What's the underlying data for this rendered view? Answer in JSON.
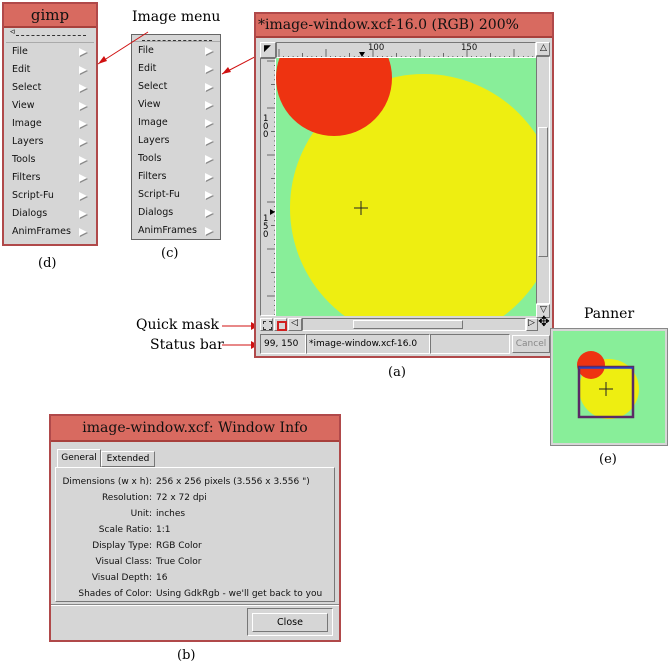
{
  "gimp_toolbox_menu": {
    "title": "gimp",
    "items": [
      "File",
      "Edit",
      "Select",
      "View",
      "Image",
      "Layers",
      "Tools",
      "Filters",
      "Script-Fu",
      "Dialogs",
      "AnimFrames"
    ],
    "caption": "(d)"
  },
  "image_menu": {
    "heading": "Image menu",
    "items": [
      "File",
      "Edit",
      "Select",
      "View",
      "Image",
      "Layers",
      "Tools",
      "Filters",
      "Script-Fu",
      "Dialogs",
      "AnimFrames"
    ],
    "caption": "(c)"
  },
  "image_window": {
    "title": "*image-window.xcf-16.0 (RGB) 200%",
    "ruler_top": [
      "100",
      "150"
    ],
    "ruler_left": [
      {
        "lines": [
          "1",
          "0",
          "0"
        ]
      },
      {
        "lines": [
          "1",
          "5",
          "0"
        ]
      }
    ],
    "status_coords": "99, 150",
    "status_text": "*image-window.xcf-16.0",
    "cancel_label": "Cancel",
    "caption": "(a)",
    "colors": {
      "background": "#88ee99",
      "yellow": "#eeee11",
      "red": "#ee3311"
    }
  },
  "annotations": {
    "quick_mask": "Quick mask",
    "status_bar": "Status bar"
  },
  "panner": {
    "heading": "Panner",
    "caption": "(e)"
  },
  "window_info": {
    "title": "image-window.xcf: Window Info",
    "tabs": [
      "General",
      "Extended"
    ],
    "rows": [
      {
        "key": "Dimensions (w x h):",
        "value": "256 x 256 pixels (3.556 x 3.556 \")"
      },
      {
        "key": "Resolution:",
        "value": "72 x 72 dpi"
      },
      {
        "key": "Unit:",
        "value": "inches"
      },
      {
        "key": "Scale Ratio:",
        "value": "1:1"
      },
      {
        "key": "Display Type:",
        "value": "RGB Color"
      },
      {
        "key": "Visual Class:",
        "value": "True Color"
      },
      {
        "key": "Visual Depth:",
        "value": "16"
      },
      {
        "key": "Shades of Color:",
        "value": "Using GdkRgb - we'll get back to you"
      }
    ],
    "close_label": "Close",
    "caption": "(b)"
  }
}
